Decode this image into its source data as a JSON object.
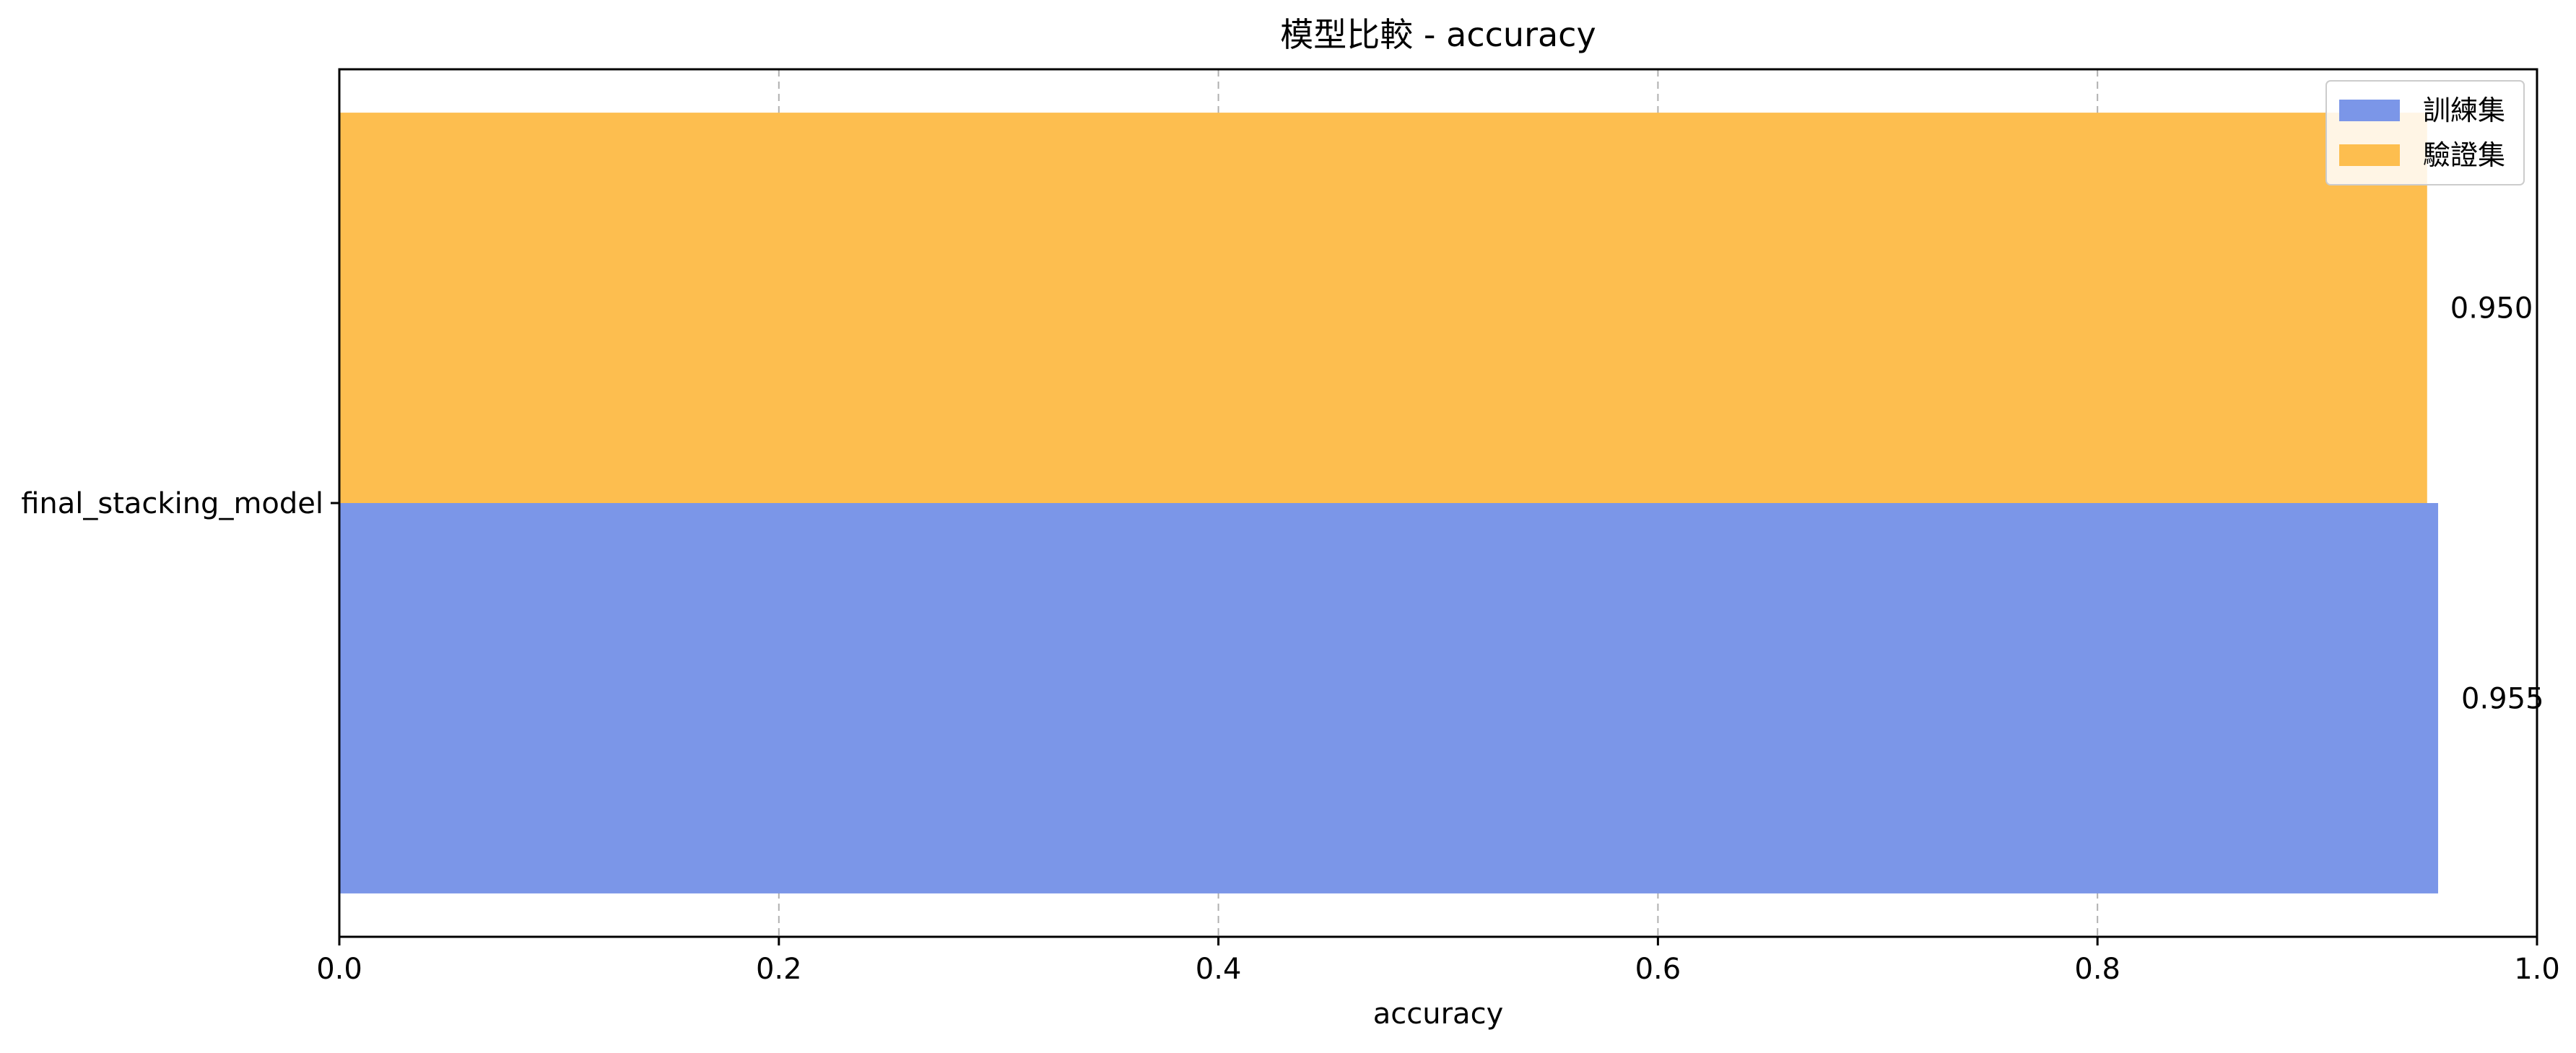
{
  "chart_data": {
    "type": "bar",
    "orientation": "horizontal",
    "title": "模型比較 - accuracy",
    "xlabel": "accuracy",
    "ylabel": "",
    "xlim": [
      0.0,
      1.0
    ],
    "x_ticks": [
      "0.0",
      "0.2",
      "0.4",
      "0.6",
      "0.8",
      "1.0"
    ],
    "categories": [
      "final_stacking_model"
    ],
    "series": [
      {
        "name": "訓練集",
        "values": [
          0.955
        ],
        "labels": [
          "0.955"
        ],
        "color": "#7b96e8"
      },
      {
        "name": "驗證集",
        "values": [
          0.95
        ],
        "labels": [
          "0.950"
        ],
        "color": "#fdbe4f"
      }
    ],
    "grid": "vertical dashed",
    "legend_position": "top-right"
  }
}
